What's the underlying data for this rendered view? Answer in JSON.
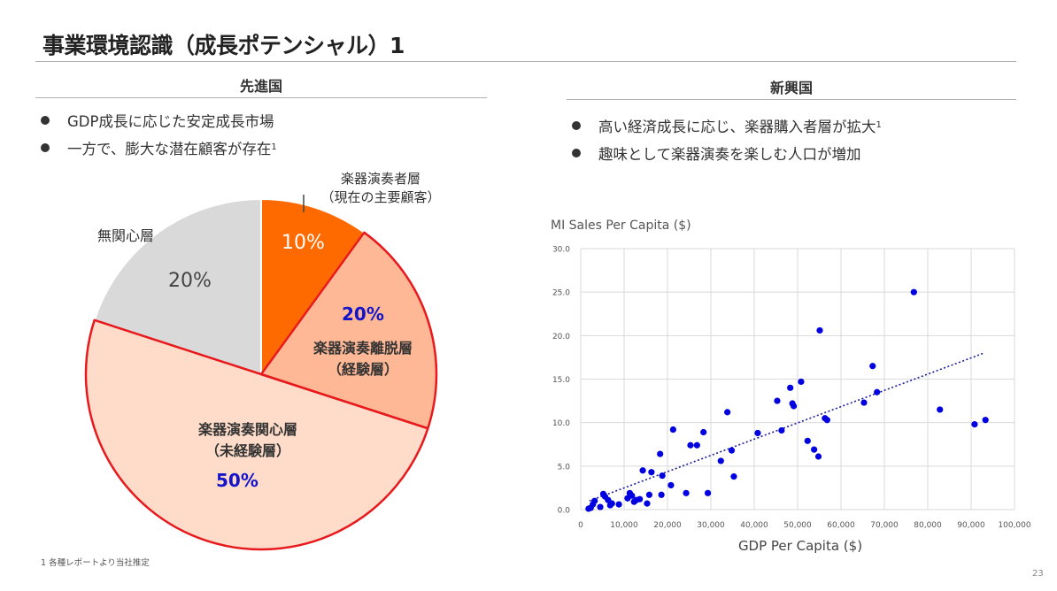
{
  "title": "事業環境認識（成長ポテンシャル）1",
  "developed": {
    "heading": "先進国",
    "bullets": [
      {
        "text": "GDP成長に応じた安定成長市場",
        "sup": ""
      },
      {
        "text": "一方で、膨大な潜在顧客が存在",
        "sup": "1"
      }
    ],
    "pie": {
      "slices": [
        {
          "key": "players",
          "value": 10,
          "color": "#ff6a00",
          "pct_label": "10%",
          "name_lines": [
            "楽器演奏者層",
            "（現在の主要顧客）"
          ]
        },
        {
          "key": "dropouts",
          "value": 20,
          "color": "#ffb896",
          "pct_label": "20%",
          "name_lines": [
            "楽器演奏離脱層",
            "（経験層）"
          ]
        },
        {
          "key": "interested",
          "value": 50,
          "color": "#ffdcc9",
          "pct_label": "50%",
          "name_lines": [
            "楽器演奏関心層",
            "（未経験層）"
          ]
        },
        {
          "key": "uninterested",
          "value": 20,
          "color": "#d9d9d9",
          "pct_label": "20%",
          "name_lines": [
            "無関心層"
          ]
        }
      ],
      "highlight_color": "#e8191c"
    }
  },
  "emerging": {
    "heading": "新興国",
    "bullets": [
      {
        "text": "高い経済成長に応じ、楽器購入者層が拡大",
        "sup": "1"
      },
      {
        "text": "趣味として楽器演奏を楽しむ人口が増加",
        "sup": ""
      }
    ]
  },
  "chart_data": {
    "type": "scatter",
    "title": "MI Sales Per Capita ($)",
    "xlabel": "GDP Per Capita ($)",
    "ylabel": "",
    "xlim": [
      0,
      100000
    ],
    "ylim": [
      0,
      30
    ],
    "x_ticks": [
      0,
      10000,
      20000,
      30000,
      40000,
      50000,
      60000,
      70000,
      80000,
      90000,
      100000
    ],
    "x_tick_labels": [
      "0",
      "10,000",
      "20,000",
      "30,000",
      "40,000",
      "50,000",
      "60,000",
      "70,000",
      "80,000",
      "90,000",
      "100,000"
    ],
    "y_ticks": [
      0,
      5,
      10,
      15,
      20,
      25,
      30
    ],
    "y_tick_labels": [
      "0.0",
      "5.0",
      "10.0",
      "15.0",
      "20.0",
      "25.0",
      "30.0"
    ],
    "grid": true,
    "point_color": "#0000e0",
    "trendline": {
      "style": "dotted",
      "color": "#1a1aa0",
      "from": [
        2000,
        1.0
      ],
      "to": [
        93000,
        18.0
      ]
    },
    "points": [
      [
        1800,
        0.1
      ],
      [
        2300,
        0.2
      ],
      [
        2800,
        0.6
      ],
      [
        3200,
        1.0
      ],
      [
        4500,
        0.3
      ],
      [
        5200,
        1.8
      ],
      [
        5600,
        1.5
      ],
      [
        6300,
        1.1
      ],
      [
        6800,
        0.5
      ],
      [
        7200,
        0.7
      ],
      [
        8800,
        0.6
      ],
      [
        10800,
        1.3
      ],
      [
        11300,
        1.9
      ],
      [
        11800,
        1.6
      ],
      [
        12300,
        0.9
      ],
      [
        12800,
        1.1
      ],
      [
        13600,
        1.2
      ],
      [
        14300,
        4.5
      ],
      [
        15300,
        0.7
      ],
      [
        15800,
        1.7
      ],
      [
        16300,
        4.3
      ],
      [
        18300,
        6.4
      ],
      [
        18600,
        1.7
      ],
      [
        18800,
        3.9
      ],
      [
        20800,
        2.8
      ],
      [
        21300,
        9.2
      ],
      [
        24300,
        1.9
      ],
      [
        25300,
        7.4
      ],
      [
        26800,
        7.4
      ],
      [
        28300,
        8.9
      ],
      [
        29300,
        1.9
      ],
      [
        32300,
        5.6
      ],
      [
        33800,
        11.2
      ],
      [
        34800,
        6.8
      ],
      [
        35300,
        3.8
      ],
      [
        40800,
        8.8
      ],
      [
        45300,
        12.5
      ],
      [
        46300,
        9.1
      ],
      [
        48300,
        14.0
      ],
      [
        48800,
        12.2
      ],
      [
        49100,
        11.9
      ],
      [
        50800,
        14.7
      ],
      [
        52300,
        7.9
      ],
      [
        53800,
        6.9
      ],
      [
        54800,
        6.1
      ],
      [
        55100,
        20.6
      ],
      [
        56300,
        10.5
      ],
      [
        56800,
        10.3
      ],
      [
        65300,
        12.3
      ],
      [
        67300,
        16.5
      ],
      [
        68300,
        13.5
      ],
      [
        76800,
        25.0
      ],
      [
        82800,
        11.5
      ],
      [
        90800,
        9.8
      ],
      [
        93300,
        10.3
      ]
    ]
  },
  "footnote": "1 各種レポートより当社推定",
  "page_number": "23"
}
